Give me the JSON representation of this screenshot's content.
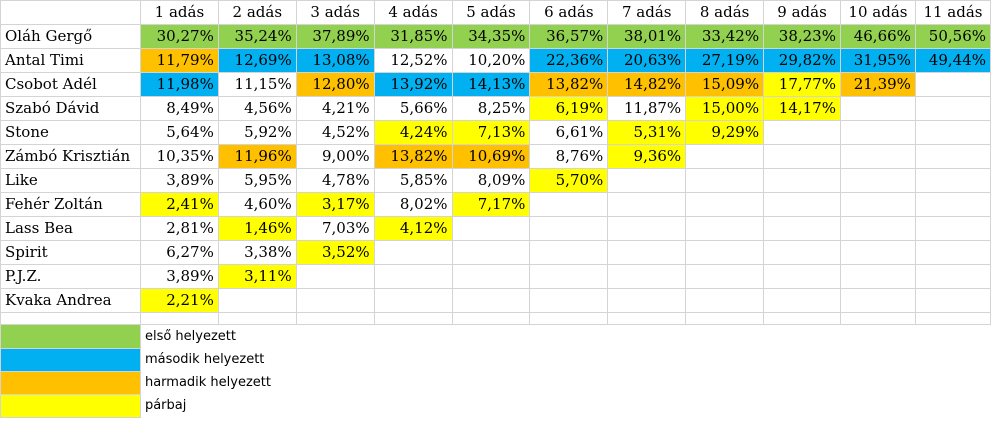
{
  "colors": {
    "first": "#92d050",
    "second": "#00b0f0",
    "third": "#ffc000",
    "duel": "#ffff00"
  },
  "headers": [
    "1 adás",
    "2 adás",
    "3 adás",
    "4 adás",
    "5 adás",
    "6 adás",
    "7 adás",
    "8 adás",
    "9 adás",
    "10 adás",
    "11 adás"
  ],
  "rows": [
    {
      "name": "Oláh Gergő",
      "values": [
        "30,27%",
        "35,24%",
        "37,89%",
        "31,85%",
        "34,35%",
        "36,57%",
        "38,01%",
        "33,42%",
        "38,23%",
        "46,66%",
        "50,56%"
      ],
      "marks": [
        "g",
        "g",
        "g",
        "g",
        "g",
        "g",
        "g",
        "g",
        "g",
        "g",
        "g"
      ]
    },
    {
      "name": "Antal Timi",
      "values": [
        "11,79%",
        "12,69%",
        "13,08%",
        "12,52%",
        "10,20%",
        "22,36%",
        "20,63%",
        "27,19%",
        "29,82%",
        "31,95%",
        "49,44%"
      ],
      "marks": [
        "o",
        "b",
        "b",
        "",
        "",
        "b",
        "b",
        "b",
        "b",
        "b",
        "b"
      ]
    },
    {
      "name": "Csobot Adél",
      "values": [
        "11,98%",
        "11,15%",
        "12,80%",
        "13,92%",
        "14,13%",
        "13,82%",
        "14,82%",
        "15,09%",
        "17,77%",
        "21,39%",
        ""
      ],
      "marks": [
        "b",
        "",
        "o",
        "b",
        "b",
        "o",
        "o",
        "o",
        "y",
        "o",
        ""
      ]
    },
    {
      "name": "Szabó Dávid",
      "values": [
        "8,49%",
        "4,56%",
        "4,21%",
        "5,66%",
        "8,25%",
        "6,19%",
        "11,87%",
        "15,00%",
        "14,17%",
        "",
        ""
      ],
      "marks": [
        "",
        "",
        "",
        "",
        "",
        "y",
        "",
        "y",
        "y",
        "",
        ""
      ]
    },
    {
      "name": "Stone",
      "values": [
        "5,64%",
        "5,92%",
        "4,52%",
        "4,24%",
        "7,13%",
        "6,61%",
        "5,31%",
        "9,29%",
        "",
        "",
        ""
      ],
      "marks": [
        "",
        "",
        "",
        "y",
        "y",
        "",
        "y",
        "y",
        "",
        "",
        ""
      ]
    },
    {
      "name": "Zámbó Krisztián",
      "values": [
        "10,35%",
        "11,96%",
        "9,00%",
        "13,82%",
        "10,69%",
        "8,76%",
        "9,36%",
        "",
        "",
        "",
        ""
      ],
      "marks": [
        "",
        "o",
        "",
        "o",
        "o",
        "",
        "y",
        "",
        "",
        "",
        ""
      ]
    },
    {
      "name": "Like",
      "values": [
        "3,89%",
        "5,95%",
        "4,78%",
        "5,85%",
        "8,09%",
        "5,70%",
        "",
        "",
        "",
        "",
        ""
      ],
      "marks": [
        "",
        "",
        "",
        "",
        "",
        "y",
        "",
        "",
        "",
        "",
        ""
      ]
    },
    {
      "name": "Fehér Zoltán",
      "values": [
        "2,41%",
        "4,60%",
        "3,17%",
        "8,02%",
        "7,17%",
        "",
        "",
        "",
        "",
        "",
        ""
      ],
      "marks": [
        "y",
        "",
        "y",
        "",
        "y",
        "",
        "",
        "",
        "",
        "",
        ""
      ]
    },
    {
      "name": "Lass Bea",
      "values": [
        "2,81%",
        "1,46%",
        "7,03%",
        "4,12%",
        "",
        "",
        "",
        "",
        "",
        "",
        ""
      ],
      "marks": [
        "",
        "y",
        "",
        "y",
        "",
        "",
        "",
        "",
        "",
        "",
        ""
      ]
    },
    {
      "name": "Spirit",
      "values": [
        "6,27%",
        "3,38%",
        "3,52%",
        "",
        "",
        "",
        "",
        "",
        "",
        "",
        ""
      ],
      "marks": [
        "",
        "",
        "y",
        "",
        "",
        "",
        "",
        "",
        "",
        "",
        ""
      ]
    },
    {
      "name": "P.J.Z.",
      "values": [
        "3,89%",
        "3,11%",
        "",
        "",
        "",
        "",
        "",
        "",
        "",
        "",
        ""
      ],
      "marks": [
        "",
        "y",
        "",
        "",
        "",
        "",
        "",
        "",
        "",
        "",
        ""
      ]
    },
    {
      "name": "Kvaka Andrea",
      "values": [
        "2,21%",
        "",
        "",
        "",
        "",
        "",
        "",
        "",
        "",
        "",
        ""
      ],
      "marks": [
        "y",
        "",
        "",
        "",
        "",
        "",
        "",
        "",
        "",
        "",
        ""
      ]
    }
  ],
  "legend": [
    {
      "mark": "g",
      "label": "első helyezett"
    },
    {
      "mark": "b",
      "label": "második helyezett"
    },
    {
      "mark": "o",
      "label": "harmadik helyezett"
    },
    {
      "mark": "y",
      "label": "párbaj"
    }
  ]
}
